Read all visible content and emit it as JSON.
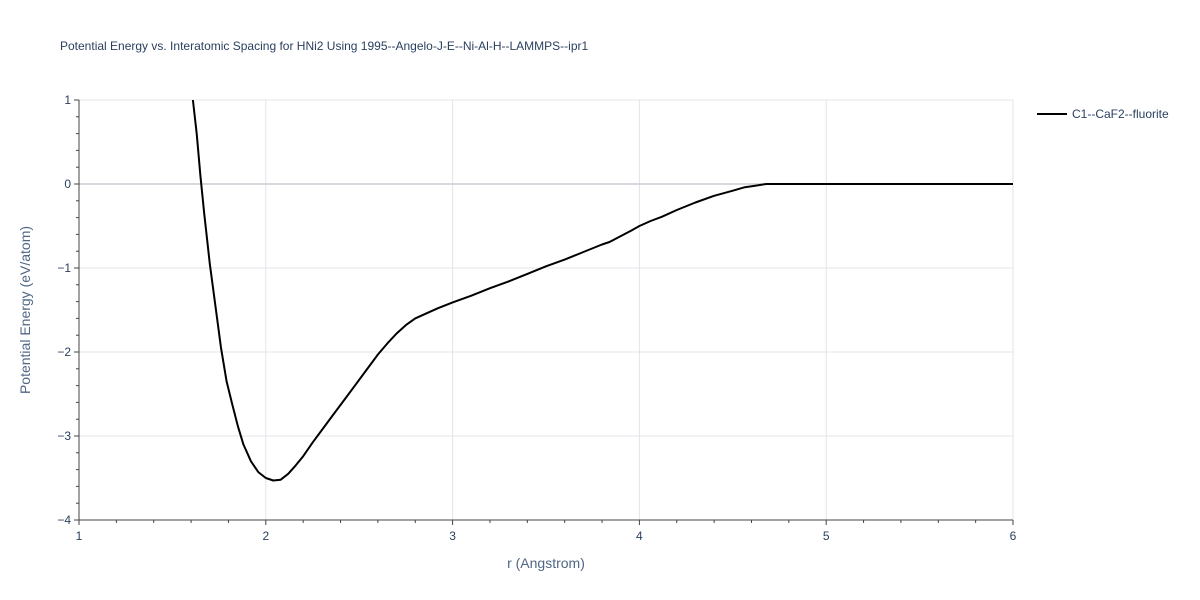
{
  "chart_data": {
    "type": "line",
    "title": "Potential Energy vs. Interatomic Spacing for HNi2 Using 1995--Angelo-J-E--Ni-Al-H--LAMMPS--ipr1",
    "xlabel": "r (Angstrom)",
    "ylabel": "Potential Energy (eV/atom)",
    "xlim": [
      1,
      6
    ],
    "ylim": [
      -4,
      1
    ],
    "xticks": [
      1,
      2,
      3,
      4,
      5,
      6
    ],
    "xtick_labels": [
      "1",
      "2",
      "3",
      "4",
      "5",
      "6"
    ],
    "yticks": [
      1,
      0,
      -1,
      -2,
      -3,
      -4
    ],
    "ytick_labels": [
      "1",
      "0",
      "−1",
      "−2",
      "−3",
      "−4"
    ],
    "grid": true,
    "legend_position": "top-right",
    "series": [
      {
        "name": "C1--CaF2--fluorite",
        "color": "#000000",
        "x": [
          1.61,
          1.63,
          1.65,
          1.67,
          1.7,
          1.73,
          1.76,
          1.79,
          1.82,
          1.85,
          1.88,
          1.92,
          1.96,
          2.0,
          2.04,
          2.08,
          2.12,
          2.16,
          2.2,
          2.25,
          2.3,
          2.36,
          2.42,
          2.48,
          2.54,
          2.6,
          2.65,
          2.7,
          2.75,
          2.8,
          2.85,
          2.92,
          3.0,
          3.1,
          3.2,
          3.3,
          3.4,
          3.5,
          3.6,
          3.7,
          3.8,
          3.84,
          3.9,
          3.96,
          4.0,
          4.06,
          4.12,
          4.2,
          4.3,
          4.4,
          4.5,
          4.56,
          4.62,
          4.68,
          4.72,
          4.8,
          5.0,
          5.5,
          6.0
        ],
        "values": [
          1.0,
          0.6,
          0.1,
          -0.35,
          -0.95,
          -1.45,
          -1.95,
          -2.35,
          -2.62,
          -2.88,
          -3.1,
          -3.3,
          -3.43,
          -3.5,
          -3.53,
          -3.52,
          -3.45,
          -3.35,
          -3.24,
          -3.08,
          -2.93,
          -2.75,
          -2.57,
          -2.39,
          -2.21,
          -2.03,
          -1.9,
          -1.78,
          -1.68,
          -1.6,
          -1.55,
          -1.48,
          -1.41,
          -1.33,
          -1.24,
          -1.16,
          -1.07,
          -0.98,
          -0.9,
          -0.81,
          -0.72,
          -0.69,
          -0.62,
          -0.55,
          -0.5,
          -0.44,
          -0.39,
          -0.31,
          -0.22,
          -0.14,
          -0.08,
          -0.04,
          -0.02,
          0.0,
          0.0,
          0.0,
          0.0,
          0.0,
          0.0
        ]
      }
    ]
  }
}
